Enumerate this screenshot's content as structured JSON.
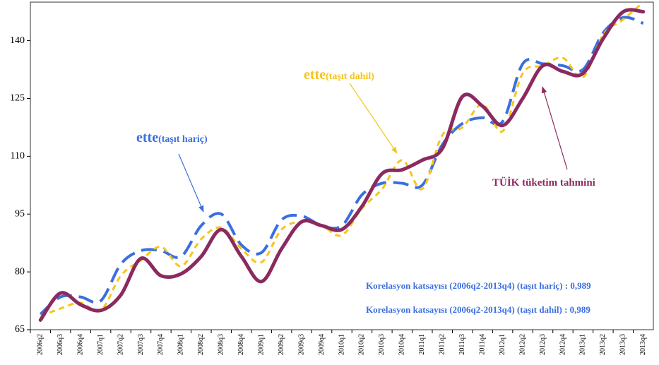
{
  "chart_data": {
    "type": "line",
    "categories": [
      "2006q2",
      "2006q3",
      "2006q4",
      "2007q1",
      "2007q2",
      "2007q3",
      "2007q4",
      "2008q1",
      "2008q2",
      "2008q3",
      "2008q4",
      "2009q1",
      "2009q2",
      "2009q3",
      "2009q4",
      "2010q1",
      "2010q2",
      "2010q3",
      "2010q4",
      "2011q1",
      "2011q2",
      "2011q3",
      "2011q4",
      "2012q1",
      "2012q2",
      "2012q3",
      "2012q4",
      "2013q1",
      "2013q2",
      "2013q3",
      "2013q4"
    ],
    "series": [
      {
        "name_parts": [
          "ette",
          "(taşıt hariç)"
        ],
        "color": "#3b6fe0",
        "dash": "22 10",
        "values": [
          69,
          73.5,
          73.5,
          72.5,
          82,
          85.5,
          85.5,
          84,
          92,
          95,
          87,
          85,
          93.5,
          94.5,
          92,
          92,
          100,
          103,
          103,
          102.5,
          113,
          118.5,
          120,
          119,
          134,
          134,
          133.5,
          132.5,
          142,
          146,
          144.5
        ]
      },
      {
        "name_parts": [
          "ette",
          "(taşıt dahil)"
        ],
        "color": "#f5c518",
        "dash": "8 6",
        "values": [
          68.5,
          70.5,
          72,
          70,
          79,
          83,
          86.5,
          81.5,
          88.5,
          91.5,
          86,
          82.5,
          91,
          93,
          92,
          89.5,
          96.5,
          101.5,
          109,
          101.5,
          115.5,
          117.5,
          123.5,
          116.5,
          131.5,
          133.5,
          135.5,
          130.5,
          141.5,
          145.5,
          150
        ]
      },
      {
        "name": "TÜİK tüketim tahmini",
        "color": "#8b2a5f",
        "dash": "none",
        "values": [
          67.5,
          74.5,
          71.5,
          70,
          74,
          83.5,
          79,
          79.5,
          84,
          91,
          84,
          77.5,
          86,
          93,
          92,
          91,
          97,
          105.5,
          106.5,
          109,
          112,
          125.5,
          123,
          118,
          125,
          133.5,
          132,
          131.5,
          140.5,
          147.5,
          147.5
        ]
      }
    ],
    "annotations": [
      "Korelasyon katsayısı (2006q2-2013q4) (taşıt hariç) : 0,989",
      "Korelasyon katsayısı (2006q2-2013q4) (taşıt dahil) : 0,989"
    ],
    "ylim": [
      65,
      150
    ],
    "yticks": [
      65,
      80,
      95,
      110,
      125,
      140
    ]
  }
}
